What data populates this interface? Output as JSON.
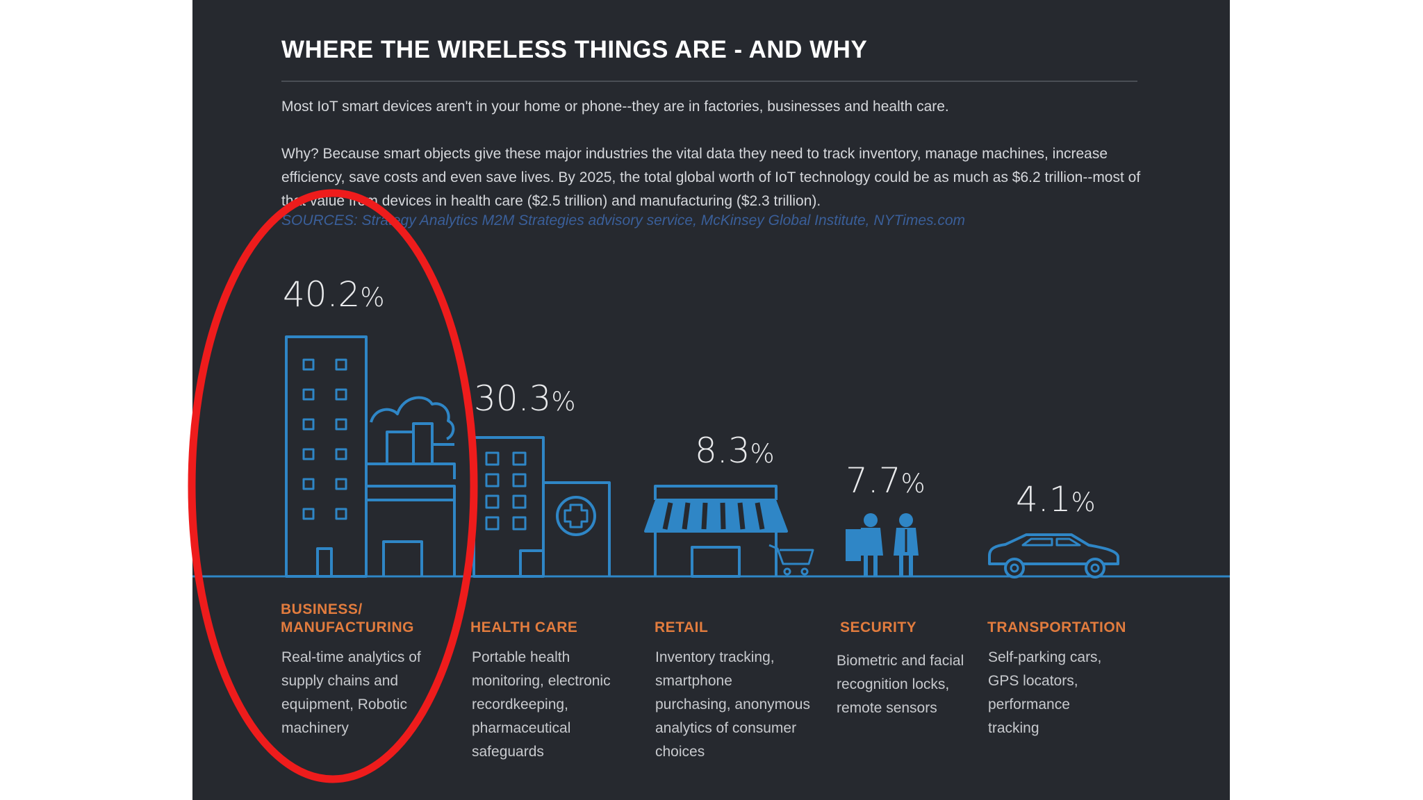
{
  "infographic": {
    "title": "WHERE THE WIRELESS THINGS ARE - AND WHY",
    "intro": "Most IoT smart devices aren't in your home or phone--they are in factories, businesses and health care.",
    "body": "Why? Because smart objects give these major industries the vital data they need to track inventory, manage machines, increase efficiency, save costs and even save lives. By 2025, the total global worth of IoT technology could be as much as $6.2 trillion--most of that value from devices in health care ($2.5 trillion) and manufacturing ($2.3 trillion).",
    "sources": "SOURCES: Strategy Analytics M2M Strategies advisory service, McKinsey Global Institute, NYTimes.com",
    "categories": [
      {
        "percent": "40.2",
        "name_line1": "BUSINESS/",
        "name_line2": "MANUFACTURING",
        "description": "Real-time analytics of supply chains and equipment, Robotic machinery",
        "icon": "factory-building-icon"
      },
      {
        "percent": "30.3",
        "name_line1": "HEALTH CARE",
        "name_line2": "",
        "description": "Portable health monitoring, electronic recordkeeping, pharmaceutical safeguards",
        "icon": "hospital-icon"
      },
      {
        "percent": "8.3",
        "name_line1": "RETAIL",
        "name_line2": "",
        "description": "Inventory tracking, smartphone purchasing, anonymous analytics of consumer choices",
        "icon": "storefront-cart-icon"
      },
      {
        "percent": "7.7",
        "name_line1": "SECURITY",
        "name_line2": "",
        "description": "Biometric and facial recognition locks, remote sensors",
        "icon": "guards-icon"
      },
      {
        "percent": "4.1",
        "name_line1": "TRANSPORTATION",
        "name_line2": "",
        "description": "Self-parking cars, GPS locators, performance tracking",
        "icon": "car-icon"
      }
    ],
    "percent_sign": "%"
  },
  "colors": {
    "background": "#26292f",
    "icon_line": "#2f86c6",
    "category_name": "#e27c3e",
    "highlight": "#ee1c1c"
  }
}
